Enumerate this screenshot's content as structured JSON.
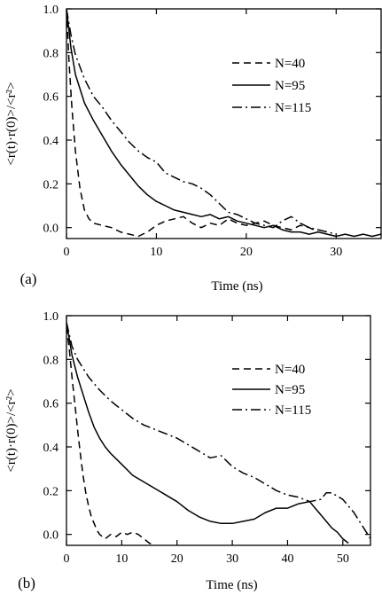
{
  "chart_data": [
    {
      "type": "line",
      "panel_label": "(a)",
      "xlabel": "Time (ns)",
      "ylabel": "<r(t)·r(0)>/<r²>",
      "xlim": [
        0,
        35
      ],
      "ylim": [
        -0.05,
        1.0
      ],
      "x_ticks": [
        0,
        10,
        20,
        30
      ],
      "y_ticks": [
        0.0,
        0.2,
        0.4,
        0.6,
        0.8,
        1.0
      ],
      "y_tick_labels": [
        "0.0",
        "0.2",
        "0.4",
        "0.6",
        "0.8",
        "1.0"
      ],
      "legend_position": "top-right",
      "grid": false,
      "series": [
        {
          "name": "N=40",
          "style": "dash",
          "x": [
            0,
            0.3,
            0.6,
            1.0,
            1.5,
            2.0,
            2.5,
            3.0,
            4.0,
            5.0,
            6.0,
            7.0,
            8.0,
            9.0,
            10.0,
            11.0,
            12.0,
            13.0,
            14.0,
            15.0,
            16.0,
            17.0,
            18.0,
            19.0,
            20.0,
            21.0,
            22.0,
            23.0,
            24.0,
            25.0,
            26.0,
            27.0,
            28.0
          ],
          "y": [
            1.0,
            0.75,
            0.55,
            0.35,
            0.18,
            0.08,
            0.04,
            0.02,
            0.01,
            0.0,
            -0.02,
            -0.03,
            -0.04,
            -0.02,
            0.01,
            0.03,
            0.04,
            0.05,
            0.02,
            0.0,
            0.02,
            0.01,
            0.04,
            0.02,
            0.01,
            0.02,
            0.03,
            0.01,
            0.0,
            -0.01,
            0.01,
            0.0,
            -0.02
          ]
        },
        {
          "name": "N=95",
          "style": "solid",
          "x": [
            0,
            0.5,
            1.0,
            2.0,
            3.0,
            4.0,
            5.0,
            6.0,
            7.0,
            8.0,
            9.0,
            10.0,
            11.0,
            12.0,
            13.0,
            14.0,
            15.0,
            16.0,
            17.0,
            18.0,
            19.0,
            20.0,
            21.0,
            22.0,
            23.0,
            24.0,
            25.0,
            26.0,
            27.0,
            28.0,
            29.0,
            30.0,
            31.0,
            32.0,
            33.0,
            34.0,
            35.0
          ],
          "y": [
            1.0,
            0.82,
            0.7,
            0.57,
            0.49,
            0.42,
            0.35,
            0.29,
            0.24,
            0.19,
            0.15,
            0.12,
            0.1,
            0.08,
            0.07,
            0.06,
            0.05,
            0.06,
            0.04,
            0.05,
            0.03,
            0.02,
            0.01,
            0.0,
            0.01,
            -0.01,
            -0.02,
            -0.02,
            -0.03,
            -0.02,
            -0.03,
            -0.04,
            -0.03,
            -0.04,
            -0.03,
            -0.04,
            -0.03
          ]
        },
        {
          "name": "N=115",
          "style": "dashdot",
          "x": [
            0,
            0.5,
            1.0,
            2.0,
            3.0,
            4.0,
            5.0,
            6.0,
            7.0,
            8.0,
            9.0,
            10.0,
            11.0,
            12.0,
            13.0,
            14.0,
            15.0,
            16.0,
            17.0,
            18.0,
            19.0,
            20.0,
            21.0,
            22.0,
            23.0,
            24.0,
            25.0,
            26.0,
            27.0,
            28.0,
            29.0,
            30.0
          ],
          "y": [
            1.0,
            0.88,
            0.79,
            0.68,
            0.6,
            0.55,
            0.49,
            0.44,
            0.39,
            0.35,
            0.32,
            0.3,
            0.25,
            0.23,
            0.21,
            0.2,
            0.18,
            0.15,
            0.11,
            0.07,
            0.06,
            0.04,
            0.02,
            0.01,
            0.0,
            0.03,
            0.05,
            0.02,
            0.0,
            -0.01,
            -0.02,
            -0.03
          ]
        }
      ]
    },
    {
      "type": "line",
      "panel_label": "(b)",
      "xlabel": "Time (ns)",
      "ylabel": "<r(t)·r(0)>/<r²>",
      "xlim": [
        0,
        55
      ],
      "ylim": [
        -0.05,
        1.0
      ],
      "x_ticks": [
        0,
        10,
        20,
        30,
        40,
        50
      ],
      "y_ticks": [
        0.0,
        0.2,
        0.4,
        0.6,
        0.8,
        1.0
      ],
      "y_tick_labels": [
        "0.0",
        "0.2",
        "0.4",
        "0.6",
        "0.8",
        "1.0"
      ],
      "legend_position": "top-right",
      "grid": false,
      "series": [
        {
          "name": "N=40",
          "style": "dash",
          "x": [
            0,
            0.5,
            1.0,
            1.5,
            2.0,
            2.5,
            3.0,
            3.5,
            4.0,
            4.5,
            5.0,
            5.5,
            6.0,
            7.0,
            8.0,
            9.0,
            10.0,
            11.0,
            12.0,
            13.0,
            14.0,
            15.0,
            16.0
          ],
          "y": [
            0.95,
            0.85,
            0.72,
            0.6,
            0.48,
            0.37,
            0.27,
            0.19,
            0.13,
            0.08,
            0.05,
            0.02,
            0.0,
            -0.02,
            0.0,
            -0.01,
            0.01,
            0.0,
            0.01,
            0.0,
            -0.02,
            -0.04,
            -0.05
          ]
        },
        {
          "name": "N=95",
          "style": "solid",
          "x": [
            0,
            1,
            2,
            3,
            4,
            5,
            6,
            7,
            8,
            10,
            12,
            14,
            16,
            18,
            20,
            22,
            24,
            26,
            28,
            30,
            32,
            34,
            36,
            38,
            40,
            42,
            44,
            45,
            46,
            47,
            48,
            49,
            50,
            51
          ],
          "y": [
            0.97,
            0.82,
            0.72,
            0.64,
            0.56,
            0.49,
            0.44,
            0.4,
            0.37,
            0.32,
            0.27,
            0.24,
            0.21,
            0.18,
            0.15,
            0.11,
            0.08,
            0.06,
            0.05,
            0.05,
            0.06,
            0.07,
            0.1,
            0.12,
            0.12,
            0.14,
            0.15,
            0.12,
            0.09,
            0.06,
            0.03,
            0.01,
            -0.02,
            -0.04
          ]
        },
        {
          "name": "N=115",
          "style": "dashdot",
          "x": [
            0,
            1,
            2,
            4,
            6,
            8,
            10,
            12,
            14,
            16,
            18,
            20,
            22,
            24,
            26,
            28,
            30,
            32,
            34,
            36,
            38,
            40,
            42,
            44,
            46,
            47,
            48,
            50,
            52,
            54,
            55
          ],
          "y": [
            0.97,
            0.86,
            0.8,
            0.72,
            0.66,
            0.61,
            0.57,
            0.53,
            0.5,
            0.48,
            0.46,
            0.44,
            0.41,
            0.38,
            0.35,
            0.36,
            0.31,
            0.28,
            0.26,
            0.23,
            0.2,
            0.18,
            0.17,
            0.15,
            0.16,
            0.19,
            0.19,
            0.16,
            0.1,
            0.02,
            -0.02
          ]
        }
      ]
    }
  ]
}
